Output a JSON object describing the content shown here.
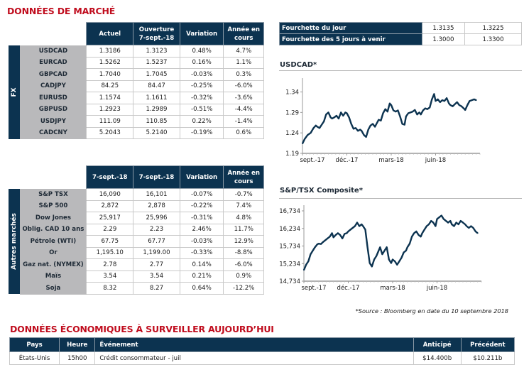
{
  "market_title": "DONNÉES DE MARCHÉ",
  "fx": {
    "side_label": "FX",
    "headers": [
      "Actuel",
      "Ouverture 7-sept.-18",
      "Variation",
      "Année en cours"
    ],
    "header_lines": [
      [
        "Actuel"
      ],
      [
        "Ouverture",
        "7-sept.-18"
      ],
      [
        "Variation"
      ],
      [
        "Année en",
        "cours"
      ]
    ],
    "rows": [
      {
        "name": "USDCAD",
        "actuel": "1.3186",
        "ouverture": "1.3123",
        "variation": "0.48%",
        "ytd": "4.7%"
      },
      {
        "name": "EURCAD",
        "actuel": "1.5262",
        "ouverture": "1.5237",
        "variation": "0.16%",
        "ytd": "1.1%"
      },
      {
        "name": "GBPCAD",
        "actuel": "1.7040",
        "ouverture": "1.7045",
        "variation": "-0.03%",
        "ytd": "0.3%"
      },
      {
        "name": "CADJPY",
        "actuel": "84.25",
        "ouverture": "84.47",
        "variation": "-0.25%",
        "ytd": "-6.0%"
      },
      {
        "name": "EURUSD",
        "actuel": "1.1574",
        "ouverture": "1.1611",
        "variation": "-0.32%",
        "ytd": "-3.6%"
      },
      {
        "name": "GBPUSD",
        "actuel": "1.2923",
        "ouverture": "1.2989",
        "variation": "-0.51%",
        "ytd": "-4.4%"
      },
      {
        "name": "USDJPY",
        "actuel": "111.09",
        "ouverture": "110.85",
        "variation": "0.22%",
        "ytd": "-1.4%"
      },
      {
        "name": "CADCNY",
        "actuel": "5.2043",
        "ouverture": "5.2140",
        "variation": "-0.19%",
        "ytd": "0.6%"
      }
    ]
  },
  "other": {
    "side_label": "Autres marchés",
    "header_lines": [
      [
        "7-sept.-18"
      ],
      [
        "7-sept.-18"
      ],
      [
        "Variation"
      ],
      [
        "Année en",
        "cours"
      ]
    ],
    "rows": [
      {
        "name": "S&P TSX",
        "actuel": "16,090",
        "ouverture": "16,101",
        "variation": "-0.07%",
        "ytd": "-0.7%"
      },
      {
        "name": "S&P 500",
        "actuel": "2,872",
        "ouverture": "2,878",
        "variation": "-0.22%",
        "ytd": "7.4%"
      },
      {
        "name": "Dow Jones",
        "actuel": "25,917",
        "ouverture": "25,996",
        "variation": "-0.31%",
        "ytd": "4.8%"
      },
      {
        "name": "Oblig. CAD 10 ans",
        "actuel": "2.29",
        "ouverture": "2.23",
        "variation": "2.46%",
        "ytd": "11.7%"
      },
      {
        "name": "Pétrole (WTI)",
        "actuel": "67.75",
        "ouverture": "67.77",
        "variation": "-0.03%",
        "ytd": "12.9%"
      },
      {
        "name": "Or",
        "actuel": "1,195.10",
        "ouverture": "1,199.00",
        "variation": "-0.33%",
        "ytd": "-8.8%"
      },
      {
        "name": "Gaz nat. (NYMEX)",
        "actuel": "2.78",
        "ouverture": "2.77",
        "variation": "0.14%",
        "ytd": "-6.0%"
      },
      {
        "name": "Maïs",
        "actuel": "3.54",
        "ouverture": "3.54",
        "variation": "0.21%",
        "ytd": "0.9%"
      },
      {
        "name": "Soja",
        "actuel": "8.32",
        "ouverture": "8.27",
        "variation": "0.64%",
        "ytd": "-12.2%"
      }
    ]
  },
  "ranges": [
    {
      "label": "Fourchette du jour",
      "low": "1.3135",
      "high": "1.3225"
    },
    {
      "label": "Fourchette des 5 jours à venir",
      "low": "1.3000",
      "high": "1.3300"
    }
  ],
  "colors": {
    "navy": "#0c3350",
    "title_red": "#c00d1e",
    "positive": "#2a8a4a",
    "negative": "#e0182c",
    "label_gray": "#b9b9bb"
  },
  "chart_data": [
    {
      "type": "line",
      "title": "USDCAD*",
      "xlabel": "",
      "ylabel": "",
      "x_tick_labels": [
        "sept.-17",
        "déc.-17",
        "mars-18",
        "juin-18"
      ],
      "y_tick_labels": [
        "1.19",
        "1.24",
        "1.29",
        "1.34"
      ],
      "ylim": [
        1.19,
        1.36
      ],
      "x_range_months": [
        0,
        12
      ],
      "series": [
        {
          "name": "USDCAD",
          "x_months": [
            0,
            0.15,
            0.35,
            0.55,
            0.75,
            0.9,
            1.0,
            1.15,
            1.3,
            1.45,
            1.6,
            1.75,
            1.9,
            2.0,
            2.15,
            2.3,
            2.45,
            2.6,
            2.75,
            2.9,
            3.0,
            3.15,
            3.3,
            3.45,
            3.6,
            3.75,
            3.9,
            4.0,
            4.15,
            4.3,
            4.45,
            4.6,
            4.75,
            4.9,
            5.0,
            5.15,
            5.3,
            5.45,
            5.6,
            5.75,
            5.9,
            6.0,
            6.15,
            6.3,
            6.45,
            6.6,
            6.75,
            6.9,
            7.0,
            7.15,
            7.3,
            7.45,
            7.6,
            7.75,
            7.9,
            8.0,
            8.15,
            8.3,
            8.45,
            8.6,
            8.75,
            8.9,
            9.0,
            9.15,
            9.3,
            9.45,
            9.6,
            9.75,
            9.9,
            10.0,
            10.15,
            10.3,
            10.45,
            10.6,
            10.75,
            10.9,
            11.0,
            11.15,
            11.3,
            11.45,
            11.6,
            11.75
          ],
          "values": [
            1.214,
            1.225,
            1.235,
            1.24,
            1.252,
            1.258,
            1.255,
            1.252,
            1.26,
            1.268,
            1.285,
            1.29,
            1.278,
            1.275,
            1.278,
            1.282,
            1.275,
            1.29,
            1.282,
            1.29,
            1.288,
            1.278,
            1.262,
            1.25,
            1.252,
            1.245,
            1.248,
            1.245,
            1.235,
            1.23,
            1.248,
            1.258,
            1.262,
            1.255,
            1.262,
            1.272,
            1.27,
            1.288,
            1.298,
            1.292,
            1.312,
            1.308,
            1.295,
            1.292,
            1.295,
            1.28,
            1.262,
            1.26,
            1.28,
            1.288,
            1.29,
            1.292,
            1.296,
            1.285,
            1.29,
            1.285,
            1.295,
            1.3,
            1.298,
            1.302,
            1.322,
            1.335,
            1.318,
            1.322,
            1.315,
            1.32,
            1.318,
            1.325,
            1.312,
            1.308,
            1.305,
            1.31,
            1.315,
            1.308,
            1.305,
            1.3,
            1.296,
            1.308,
            1.318,
            1.32,
            1.322,
            1.32
          ]
        }
      ]
    },
    {
      "type": "line",
      "title": "S&P/TSX Composite*",
      "xlabel": "",
      "ylabel": "",
      "x_tick_labels": [
        "sept.-17",
        "déc.-17",
        "mars-18",
        "juin-18"
      ],
      "y_tick_labels": [
        "14,734",
        "15,234",
        "15,734",
        "16,234",
        "16,734"
      ],
      "ylim": [
        14734,
        16734
      ],
      "x_range_months": [
        0,
        12
      ],
      "series": [
        {
          "name": "S&P/TSX Composite",
          "x_months": [
            0,
            0.15,
            0.3,
            0.45,
            0.6,
            0.75,
            0.9,
            1.0,
            1.15,
            1.3,
            1.45,
            1.6,
            1.75,
            1.9,
            2.0,
            2.15,
            2.3,
            2.45,
            2.6,
            2.75,
            2.9,
            3.0,
            3.15,
            3.3,
            3.45,
            3.6,
            3.75,
            3.9,
            4.0,
            4.15,
            4.3,
            4.45,
            4.6,
            4.75,
            4.9,
            5.0,
            5.15,
            5.3,
            5.45,
            5.6,
            5.75,
            5.9,
            6.0,
            6.15,
            6.3,
            6.45,
            6.6,
            6.75,
            6.9,
            7.0,
            7.15,
            7.3,
            7.45,
            7.6,
            7.75,
            7.9,
            8.0,
            8.15,
            8.3,
            8.45,
            8.6,
            8.75,
            8.9,
            9.0,
            9.15,
            9.3,
            9.45,
            9.6,
            9.75,
            9.9,
            10.0,
            10.15,
            10.3,
            10.45,
            10.6,
            10.75,
            10.9,
            11.0,
            11.15,
            11.3,
            11.45,
            11.6,
            11.75
          ],
          "values": [
            15050,
            15200,
            15300,
            15500,
            15600,
            15700,
            15780,
            15800,
            15790,
            15850,
            15900,
            15950,
            16000,
            16100,
            15980,
            16050,
            16100,
            16050,
            15950,
            16080,
            16100,
            16150,
            16200,
            16250,
            16300,
            16400,
            16300,
            16350,
            16300,
            16200,
            15700,
            15250,
            15150,
            15350,
            15450,
            15550,
            15700,
            15500,
            15600,
            15700,
            15350,
            15250,
            15350,
            15300,
            15200,
            15300,
            15400,
            15550,
            15600,
            15700,
            15800,
            16000,
            16100,
            16150,
            16050,
            16000,
            16100,
            16200,
            16300,
            16350,
            16450,
            16400,
            16300,
            16500,
            16550,
            16600,
            16500,
            16450,
            16400,
            16450,
            16350,
            16300,
            16400,
            16350,
            16450,
            16400,
            16350,
            16300,
            16250,
            16300,
            16250,
            16150,
            16100
          ]
        }
      ]
    }
  ],
  "source_note": "*Source : Bloomberg en date du  10 septembre 2018",
  "eco_title": "DONNÉES ÉCONOMIQUES À SURVEILLER AUJOURD’HUI",
  "eco": {
    "headers": {
      "pays": "Pays",
      "heure": "Heure",
      "evenement": "Événement",
      "anticipe": "Anticipé",
      "precedent": "Précédent"
    },
    "rows": [
      {
        "pays": "États-Unis",
        "heure": "15h00",
        "evenement": "Crédit consommateur - juil",
        "anticipe": "$14.400b",
        "precedent": "$10.211b"
      }
    ]
  }
}
